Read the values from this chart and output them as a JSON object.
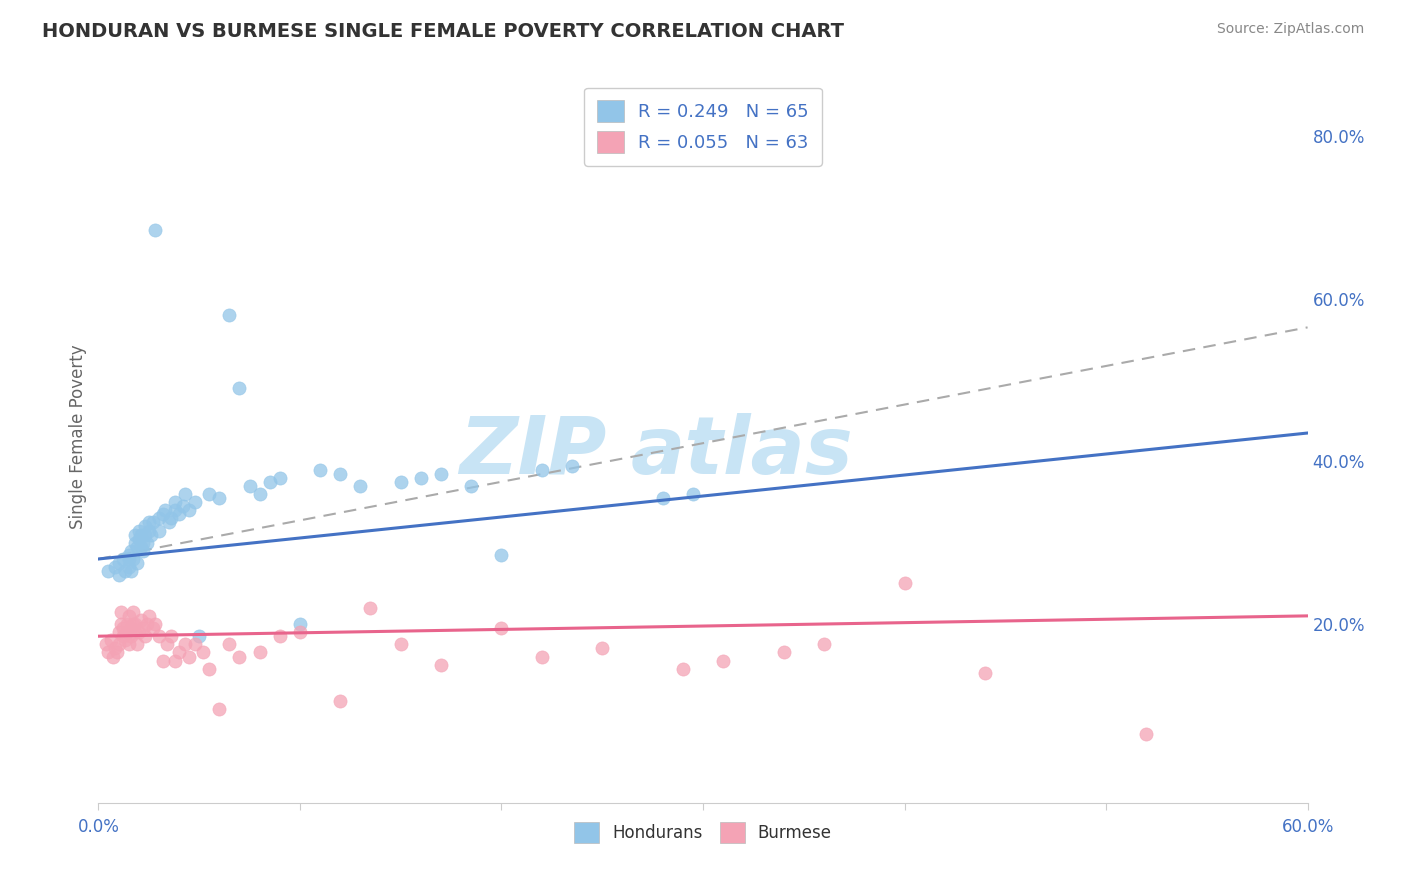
{
  "title": "HONDURAN VS BURMESE SINGLE FEMALE POVERTY CORRELATION CHART",
  "source_text": "Source: ZipAtlas.com",
  "ylabel": "Single Female Poverty",
  "xlim": [
    0.0,
    0.6
  ],
  "ylim": [
    -0.02,
    0.88
  ],
  "yticks_right": [
    0.2,
    0.4,
    0.6,
    0.8
  ],
  "ytick_right_labels": [
    "20.0%",
    "40.0%",
    "60.0%",
    "80.0%"
  ],
  "xticks": [
    0.0,
    0.1,
    0.2,
    0.3,
    0.4,
    0.5,
    0.6
  ],
  "xtick_labels": [
    "0.0%",
    "",
    "",
    "",
    "",
    "",
    "60.0%"
  ],
  "honduran_R": 0.249,
  "honduran_N": 65,
  "burmese_R": 0.055,
  "burmese_N": 63,
  "honduran_color": "#92C5E8",
  "burmese_color": "#F4A3B5",
  "honduran_line_color": "#4472C4",
  "burmese_line_color": "#E8648C",
  "dashed_line_color": "#AAAAAA",
  "background_color": "#FFFFFF",
  "grid_color": "#DDDDDD",
  "title_color": "#333333",
  "axis_label_color": "#666666",
  "tick_label_color": "#4472C4",
  "legend_R_N_color": "#4472C4",
  "watermark_color": "#C8E4F5",
  "honduran_line_x0": 0.0,
  "honduran_line_y0": 0.28,
  "honduran_line_x1": 0.6,
  "honduran_line_y1": 0.435,
  "burmese_line_x0": 0.0,
  "burmese_line_y0": 0.185,
  "burmese_line_x1": 0.6,
  "burmese_line_y1": 0.21,
  "dash_line_x0": 0.0,
  "dash_line_y0": 0.28,
  "dash_line_x1": 0.6,
  "dash_line_y1": 0.565,
  "honduran_scatter_x": [
    0.005,
    0.008,
    0.01,
    0.01,
    0.012,
    0.013,
    0.015,
    0.015,
    0.015,
    0.016,
    0.016,
    0.017,
    0.018,
    0.018,
    0.019,
    0.019,
    0.02,
    0.02,
    0.021,
    0.021,
    0.022,
    0.022,
    0.023,
    0.023,
    0.024,
    0.025,
    0.025,
    0.026,
    0.027,
    0.028,
    0.03,
    0.03,
    0.032,
    0.033,
    0.035,
    0.036,
    0.038,
    0.038,
    0.04,
    0.042,
    0.043,
    0.045,
    0.048,
    0.05,
    0.055,
    0.06,
    0.065,
    0.07,
    0.075,
    0.08,
    0.085,
    0.09,
    0.1,
    0.11,
    0.12,
    0.13,
    0.15,
    0.16,
    0.17,
    0.185,
    0.2,
    0.22,
    0.235,
    0.28,
    0.295
  ],
  "honduran_scatter_y": [
    0.265,
    0.27,
    0.26,
    0.275,
    0.28,
    0.265,
    0.27,
    0.28,
    0.285,
    0.265,
    0.29,
    0.28,
    0.3,
    0.31,
    0.275,
    0.295,
    0.305,
    0.315,
    0.295,
    0.31,
    0.29,
    0.3,
    0.31,
    0.32,
    0.3,
    0.315,
    0.325,
    0.31,
    0.325,
    0.685,
    0.315,
    0.33,
    0.335,
    0.34,
    0.325,
    0.33,
    0.34,
    0.35,
    0.335,
    0.345,
    0.36,
    0.34,
    0.35,
    0.185,
    0.36,
    0.355,
    0.58,
    0.49,
    0.37,
    0.36,
    0.375,
    0.38,
    0.2,
    0.39,
    0.385,
    0.37,
    0.375,
    0.38,
    0.385,
    0.37,
    0.285,
    0.39,
    0.395,
    0.355,
    0.36
  ],
  "burmese_scatter_x": [
    0.004,
    0.005,
    0.006,
    0.007,
    0.008,
    0.009,
    0.01,
    0.01,
    0.011,
    0.011,
    0.012,
    0.012,
    0.013,
    0.014,
    0.014,
    0.015,
    0.015,
    0.016,
    0.016,
    0.017,
    0.017,
    0.018,
    0.018,
    0.019,
    0.02,
    0.021,
    0.022,
    0.023,
    0.024,
    0.025,
    0.027,
    0.028,
    0.03,
    0.032,
    0.034,
    0.036,
    0.038,
    0.04,
    0.043,
    0.045,
    0.048,
    0.052,
    0.055,
    0.06,
    0.065,
    0.07,
    0.08,
    0.09,
    0.1,
    0.12,
    0.135,
    0.15,
    0.17,
    0.2,
    0.22,
    0.25,
    0.29,
    0.31,
    0.34,
    0.36,
    0.4,
    0.44,
    0.52
  ],
  "burmese_scatter_y": [
    0.175,
    0.165,
    0.18,
    0.16,
    0.17,
    0.165,
    0.175,
    0.19,
    0.2,
    0.215,
    0.185,
    0.195,
    0.18,
    0.19,
    0.2,
    0.21,
    0.175,
    0.185,
    0.195,
    0.2,
    0.215,
    0.19,
    0.2,
    0.175,
    0.19,
    0.205,
    0.195,
    0.185,
    0.2,
    0.21,
    0.195,
    0.2,
    0.185,
    0.155,
    0.175,
    0.185,
    0.155,
    0.165,
    0.175,
    0.16,
    0.175,
    0.165,
    0.145,
    0.095,
    0.175,
    0.16,
    0.165,
    0.185,
    0.19,
    0.105,
    0.22,
    0.175,
    0.15,
    0.195,
    0.16,
    0.17,
    0.145,
    0.155,
    0.165,
    0.175,
    0.25,
    0.14,
    0.065
  ]
}
